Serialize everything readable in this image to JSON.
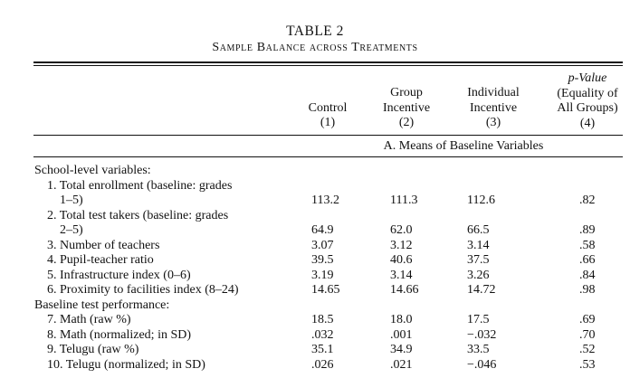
{
  "table": {
    "title": "TABLE 2",
    "subtitle": "Sample Balance across Treatments",
    "columns": [
      {
        "lines": [
          "",
          "Control",
          "(1)"
        ]
      },
      {
        "lines": [
          "Group",
          "Incentive",
          "(2)"
        ]
      },
      {
        "lines": [
          "Individual",
          "Incentive",
          "(3)"
        ]
      },
      {
        "lines": [
          "p-Value",
          "(Equality of",
          "All Groups)",
          "(4)"
        ]
      }
    ],
    "panel_label": "A. Means of Baseline Variables",
    "rows": [
      {
        "label": "School-level variables:",
        "values": [
          "",
          "",
          "",
          ""
        ]
      },
      {
        "label": "1. Total enrollment (baseline: grades",
        "values": [
          "",
          "",
          "",
          ""
        ]
      },
      {
        "label": "1–5)",
        "values": [
          "113.2",
          "111.3",
          "112.6",
          ".82"
        ]
      },
      {
        "label": "2. Total test takers (baseline: grades",
        "values": [
          "",
          "",
          "",
          ""
        ]
      },
      {
        "label": "2–5)",
        "values": [
          "64.9",
          "62.0",
          "66.5",
          ".89"
        ]
      },
      {
        "label": "3. Number of teachers",
        "values": [
          "3.07",
          "3.12",
          "3.14",
          ".58"
        ]
      },
      {
        "label": "4. Pupil-teacher ratio",
        "values": [
          "39.5",
          "40.6",
          "37.5",
          ".66"
        ]
      },
      {
        "label": "5. Infrastructure index (0–6)",
        "values": [
          "3.19",
          "3.14",
          "3.26",
          ".84"
        ]
      },
      {
        "label": "6. Proximity to facilities index (8–24)",
        "values": [
          "14.65",
          "14.66",
          "14.72",
          ".98"
        ]
      },
      {
        "label": "Baseline test performance:",
        "values": [
          "",
          "",
          "",
          ""
        ]
      },
      {
        "label": "7. Math (raw %)",
        "values": [
          "18.5",
          "18.0",
          "17.5",
          ".69"
        ]
      },
      {
        "label": "8. Math (normalized; in SD)",
        "values": [
          ".032",
          ".001",
          "−.032",
          ".70"
        ]
      },
      {
        "label": "9. Telugu (raw %)",
        "values": [
          "35.1",
          "34.9",
          "33.5",
          ".52"
        ]
      },
      {
        "label": "10. Telugu (normalized; in SD)",
        "values": [
          ".026",
          ".021",
          "−.046",
          ".53"
        ]
      }
    ]
  }
}
